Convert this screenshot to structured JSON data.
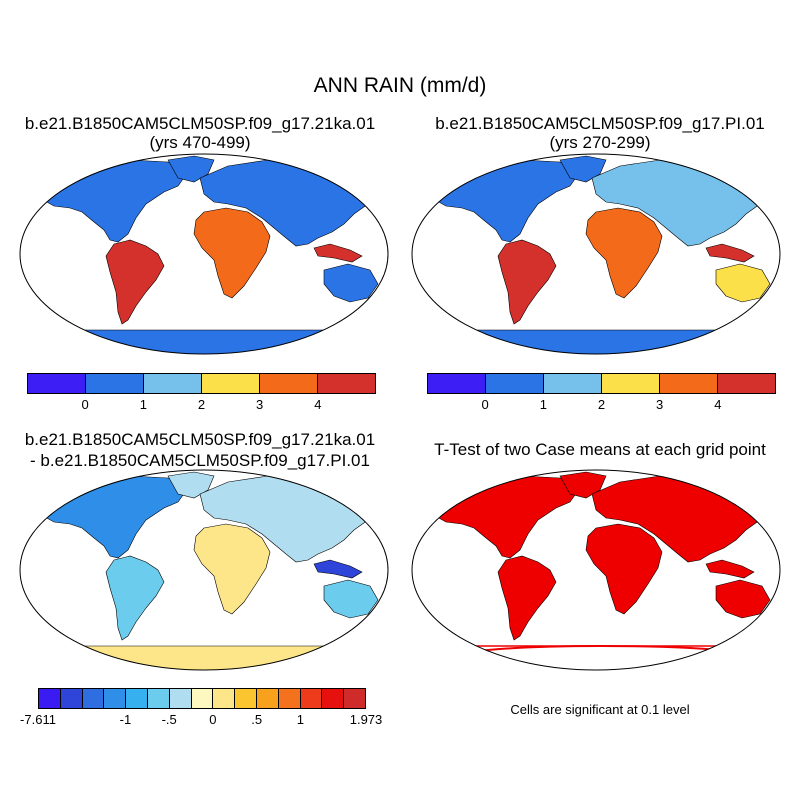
{
  "title": "ANN RAIN (mm/d)",
  "panels": [
    {
      "title": "b.e21.B1850CAM5CLM50SP.f09_g17.21ka.01",
      "subtitle": "(yrs 470-499)"
    },
    {
      "title": "b.e21.B1850CAM5CLM50SP.f09_g17.PI.01",
      "subtitle": "(yrs 270-299)"
    },
    {
      "title": "b.e21.B1850CAM5CLM50SP.f09_g17.21ka.01",
      "subtitle": "- b.e21.B1850CAM5CLM50SP.f09_g17.PI.01"
    },
    {
      "title": "T-Test of two Case means at each grid point",
      "subtitle": ""
    }
  ],
  "note": "Cells are significant at 0.1 level",
  "colorbars": {
    "abs": {
      "colors": [
        "#3d1ef5",
        "#2b74e6",
        "#76c0ec",
        "#fbe04a",
        "#f46a1b",
        "#d4312c"
      ],
      "tick_labels": [
        "0",
        "1",
        "2",
        "3",
        "4"
      ]
    },
    "diff": {
      "colors": [
        "#3a1cf3",
        "#2f44d8",
        "#2f6ee0",
        "#2f8fe8",
        "#37b0f0",
        "#6cccee",
        "#b0def0",
        "#fdf7c0",
        "#fde68a",
        "#fbc52f",
        "#f7a11c",
        "#f4721d",
        "#ee3b1c",
        "#e6100f",
        "#cf2b2b"
      ],
      "tick_labels": [
        "-7.611",
        "-1",
        "-.5",
        "0",
        ".5",
        "1",
        "1.973"
      ]
    }
  },
  "ttest_color": "#ee0000",
  "map_colors": {
    "ocean": "#ffffff",
    "outline": "#000000"
  }
}
